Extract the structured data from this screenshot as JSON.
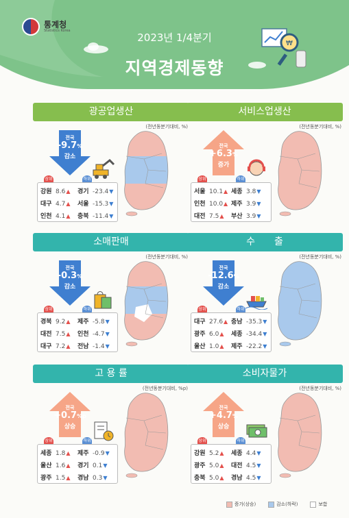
{
  "header": {
    "logo_name": "통계청",
    "logo_sub": "Statistics Korea",
    "subtitle": "2023년 1/4분기",
    "title": "지역경제동향"
  },
  "colors": {
    "increase": "#f2bcb2",
    "decrease": "#a9c9ec",
    "neutral": "#ffffff",
    "up_arrow": "#f6a587",
    "down_arrow": "#3f7fd0"
  },
  "panels": [
    {
      "title": "광공업생산",
      "unit": "(전년동분기대비, %)",
      "nat_label": "전국",
      "nat_value": "-9.7",
      "nat_unit": "%",
      "direction": "감소",
      "up_badge": "상위",
      "down_badge": "하위",
      "rows": [
        {
          "up_region": "강원",
          "up_value": "8.6",
          "down_region": "경기",
          "down_value": "-23.4"
        },
        {
          "up_region": "대구",
          "up_value": "4.7",
          "down_region": "서울",
          "down_value": "-15.3"
        },
        {
          "up_region": "인천",
          "up_value": "4.1",
          "down_region": "충북",
          "down_value": "-11.4"
        }
      ],
      "icon": "excavator-icon"
    },
    {
      "title": "서비스업생산",
      "unit": "(전년동분기대비, %)",
      "nat_label": "전국",
      "nat_value": "+6.3",
      "nat_unit": "%",
      "direction": "증가",
      "up_badge": "상위",
      "down_badge": "하위",
      "rows": [
        {
          "up_region": "서울",
          "up_value": "10.1",
          "down_region": "세종",
          "down_value": "3.8"
        },
        {
          "up_region": "인천",
          "up_value": "10.0",
          "down_region": "제주",
          "down_value": "3.9"
        },
        {
          "up_region": "대전",
          "up_value": "7.5",
          "down_region": "부산",
          "down_value": "3.9"
        }
      ],
      "icon": "headset-agent-icon"
    },
    {
      "title": "소매판매",
      "unit": "(전년동분기대비, %)",
      "nat_label": "전국",
      "nat_value": "-0.3",
      "nat_unit": "%",
      "direction": "감소",
      "up_badge": "상위",
      "down_badge": "하위",
      "rows": [
        {
          "up_region": "경북",
          "up_value": "9.2",
          "down_region": "제주",
          "down_value": "-5.8"
        },
        {
          "up_region": "대전",
          "up_value": "7.5",
          "down_region": "인천",
          "down_value": "-4.7"
        },
        {
          "up_region": "대구",
          "up_value": "7.2",
          "down_region": "전남",
          "down_value": "-1.4"
        }
      ],
      "icon": "shopping-bag-icon"
    },
    {
      "title": "수　　출",
      "unit": "(전년동분기대비, %)",
      "nat_label": "전국",
      "nat_value": "-12.6",
      "nat_unit": "%",
      "direction": "감소",
      "up_badge": "상위",
      "down_badge": "하위",
      "rows": [
        {
          "up_region": "대구",
          "up_value": "27.6",
          "down_region": "충남",
          "down_value": "-35.3"
        },
        {
          "up_region": "광주",
          "up_value": "6.0",
          "down_region": "세종",
          "down_value": "-34.4"
        },
        {
          "up_region": "울산",
          "up_value": "1.0",
          "down_region": "제주",
          "down_value": "-22.2"
        }
      ],
      "icon": "cargo-ship-icon"
    },
    {
      "title": "고 용 률",
      "unit": "(전년동분기대비, %p)",
      "nat_label": "전국",
      "nat_value": "+0.7",
      "nat_unit": "%p",
      "direction": "상승",
      "up_badge": "상위",
      "down_badge": "하위",
      "rows": [
        {
          "up_region": "세종",
          "up_value": "1.8",
          "down_region": "제주",
          "down_value": "-0.9"
        },
        {
          "up_region": "울산",
          "up_value": "1.6",
          "down_region": "경기",
          "down_value": "0.1"
        },
        {
          "up_region": "광주",
          "up_value": "1.5",
          "down_region": "경남",
          "down_value": "0.3"
        }
      ],
      "icon": "clipboard-clock-icon"
    },
    {
      "title": "소비자물가",
      "unit": "(전년동분기대비, %)",
      "nat_label": "전국",
      "nat_value": "+4.7",
      "nat_unit": "%",
      "direction": "상승",
      "up_badge": "상위",
      "down_badge": "하위",
      "rows": [
        {
          "up_region": "강원",
          "up_value": "5.2",
          "down_region": "세종",
          "down_value": "4.4"
        },
        {
          "up_region": "광주",
          "up_value": "5.0",
          "down_region": "대전",
          "down_value": "4.5"
        },
        {
          "up_region": "충북",
          "up_value": "5.0",
          "down_region": "경남",
          "down_value": "4.5"
        }
      ],
      "icon": "money-bills-icon"
    }
  ],
  "legend": {
    "increase": "증가(상승)",
    "decrease": "감소(하락)",
    "neutral": "보합"
  }
}
